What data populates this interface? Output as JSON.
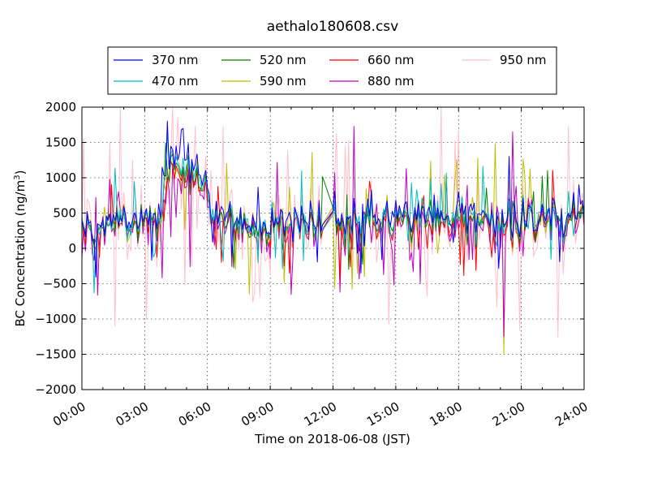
{
  "chart_data": {
    "type": "line",
    "title": "aethalo180608.csv",
    "xlabel": "Time on 2018-06-08 (JST)",
    "ylabel_main": "BC Concentration (ng/m",
    "ylabel_sup": "3",
    "ylabel_tail": ")",
    "xlim": [
      0,
      24
    ],
    "ylim": [
      -2000,
      2000
    ],
    "x_ticks": [
      0,
      3,
      6,
      9,
      12,
      15,
      18,
      21,
      24
    ],
    "x_tick_labels": [
      "00:00",
      "03:00",
      "06:00",
      "09:00",
      "12:00",
      "15:00",
      "18:00",
      "21:00",
      "24:00"
    ],
    "y_ticks": [
      -2000,
      -1500,
      -1000,
      -500,
      0,
      500,
      1000,
      1500,
      2000
    ],
    "y_tick_labels": [
      "−2000",
      "−1500",
      "−1000",
      "−500",
      "0",
      "500",
      "1000",
      "1500",
      "2000"
    ],
    "grid": true,
    "legend_position": "top-center",
    "anchors": [
      [
        0.0,
        300
      ],
      [
        0.5,
        250
      ],
      [
        1.0,
        300
      ],
      [
        1.5,
        280
      ],
      [
        2.0,
        300
      ],
      [
        2.5,
        310
      ],
      [
        3.0,
        330
      ],
      [
        3.5,
        450
      ],
      [
        3.8,
        650
      ],
      [
        4.0,
        1050
      ],
      [
        4.2,
        1300
      ],
      [
        4.5,
        1200
      ],
      [
        4.8,
        1050
      ],
      [
        5.0,
        1250
      ],
      [
        5.3,
        950
      ],
      [
        5.7,
        900
      ],
      [
        6.0,
        780
      ],
      [
        6.3,
        450
      ],
      [
        7.0,
        380
      ],
      [
        8.0,
        330
      ],
      [
        9.0,
        360
      ],
      [
        10.0,
        360
      ],
      [
        11.0,
        350
      ],
      [
        11.5,
        300
      ],
      [
        11.75,
        370
      ],
      [
        12.0,
        500
      ],
      [
        12.3,
        300
      ],
      [
        13.0,
        380
      ],
      [
        14.0,
        420
      ],
      [
        15.0,
        430
      ],
      [
        16.0,
        430
      ],
      [
        17.0,
        380
      ],
      [
        18.0,
        440
      ],
      [
        18.5,
        400
      ],
      [
        19.0,
        380
      ],
      [
        20.0,
        340
      ],
      [
        21.0,
        360
      ],
      [
        22.0,
        420
      ],
      [
        23.0,
        430
      ],
      [
        24.0,
        430
      ]
    ],
    "series": [
      {
        "name": "370 nm",
        "color": "#0000ff",
        "seed": 11,
        "amp": 1.0,
        "scale": 1.12,
        "offset": 10
      },
      {
        "name": "470 nm",
        "color": "#00bfbf",
        "seed": 12,
        "amp": 1.0,
        "scale": 1.05,
        "offset": 5
      },
      {
        "name": "520 nm",
        "color": "#008000",
        "seed": 13,
        "amp": 1.0,
        "scale": 1.0,
        "offset": 0
      },
      {
        "name": "590 nm",
        "color": "#bfbf00",
        "seed": 14,
        "amp": 1.2,
        "scale": 0.98,
        "offset": -5
      },
      {
        "name": "660 nm",
        "color": "#ff0000",
        "seed": 15,
        "amp": 1.0,
        "scale": 0.95,
        "offset": -5
      },
      {
        "name": "880 nm",
        "color": "#bf00bf",
        "seed": 16,
        "amp": 1.35,
        "scale": 0.9,
        "offset": -10
      },
      {
        "name": "950 nm",
        "color": "#ffc0cb",
        "seed": 17,
        "amp": 2.1,
        "scale": 0.92,
        "offset": -10
      }
    ],
    "events": [
      {
        "series": "590 nm",
        "x": 20.18,
        "y": -1500
      },
      {
        "series": "880 nm",
        "x": 20.15,
        "y": -1250
      },
      {
        "series": "880 nm",
        "x": 20.6,
        "y": 1650
      },
      {
        "series": "590 nm",
        "x": 19.75,
        "y": 1480
      },
      {
        "series": "370 nm",
        "x": 4.05,
        "y": 1800
      },
      {
        "series": "470 nm",
        "x": 4.05,
        "y": 1700
      },
      {
        "series": "370 nm",
        "x": 4.85,
        "y": 1700
      },
      {
        "series": "950 nm",
        "x": 4.55,
        "y": 1850
      },
      {
        "series": "950 nm",
        "x": 5.45,
        "y": 1730
      },
      {
        "series": "950 nm",
        "x": 1.6,
        "y": -1100
      },
      {
        "series": "950 nm",
        "x": 3.1,
        "y": -1000
      },
      {
        "series": "590 nm",
        "x": 12.08,
        "y": -570
      },
      {
        "series": "880 nm",
        "x": 12.05,
        "y": 1070
      }
    ]
  }
}
